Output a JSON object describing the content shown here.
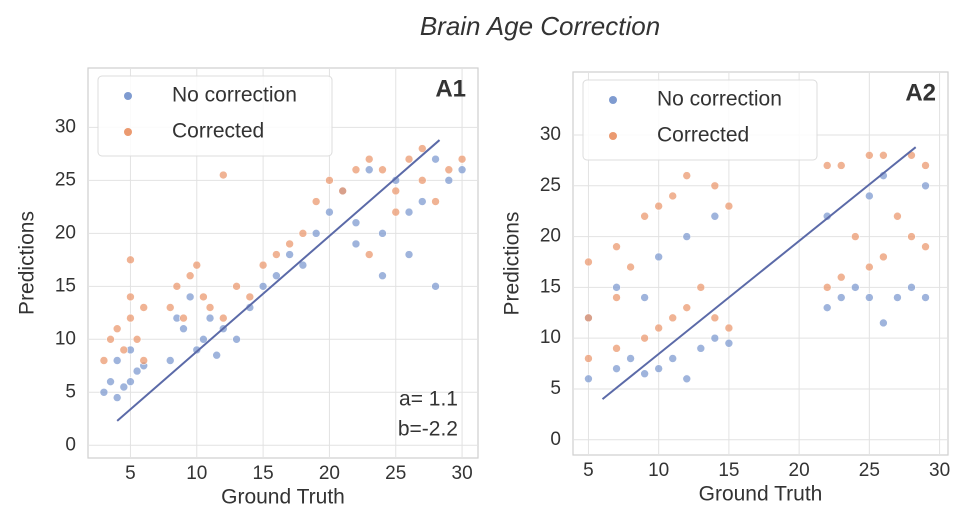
{
  "title": "Brain Age Correction",
  "chart_data": [
    {
      "type": "scatter",
      "panel_label": "A1",
      "xlabel": "Ground Truth",
      "ylabel": "Predictions",
      "xlim": [
        1.8,
        31.2
      ],
      "ylim": [
        -1.2,
        35.6
      ],
      "xticks": [
        5,
        10,
        15,
        20,
        25,
        30
      ],
      "yticks": [
        0,
        5,
        10,
        15,
        20,
        25,
        30
      ],
      "grid": true,
      "legend": "upper left",
      "series": [
        {
          "name": "No correction",
          "color": "#7f9bd0",
          "x": [
            3,
            3.5,
            4,
            4,
            4.5,
            5,
            5,
            5.5,
            6,
            8,
            8.5,
            9,
            9.5,
            10,
            10.5,
            11,
            11.5,
            12,
            13,
            14,
            15,
            16,
            17,
            18,
            19,
            20,
            21,
            22,
            23,
            24,
            25,
            26,
            27,
            28,
            29,
            30,
            24,
            22,
            26,
            28
          ],
          "values": [
            5,
            6,
            4.5,
            8,
            5.5,
            6,
            9,
            7,
            7.5,
            8,
            12,
            11,
            14,
            9,
            10,
            12,
            8.5,
            11,
            10,
            13,
            15,
            16,
            18,
            17,
            20,
            22,
            24,
            21,
            26,
            20,
            25,
            18,
            23,
            15,
            25,
            26,
            16,
            19,
            22,
            27
          ]
        },
        {
          "name": "Corrected",
          "color": "#eb9a70",
          "x": [
            3,
            3.5,
            4,
            4.5,
            5,
            5,
            5.5,
            6,
            6,
            8,
            8.5,
            9,
            9.5,
            10,
            10.5,
            11,
            12,
            12,
            13,
            14,
            15,
            16,
            17,
            18,
            19,
            20,
            21,
            22,
            23,
            24,
            25,
            26,
            27,
            28,
            29,
            30,
            23,
            25,
            27,
            5
          ],
          "values": [
            8,
            10,
            11,
            9,
            12,
            14,
            10,
            13,
            8,
            13,
            15,
            12,
            16,
            17,
            14,
            13,
            25.5,
            12,
            15,
            14,
            17,
            18,
            19,
            20,
            23,
            25,
            24,
            26,
            27,
            26,
            24,
            27,
            25,
            23,
            26,
            27,
            18,
            22,
            28,
            17.5
          ]
        }
      ],
      "fit_line": {
        "color": "#5b6aa8",
        "x": [
          4,
          28.3
        ],
        "y": [
          2.3,
          28.8
        ]
      },
      "annotations": [
        "a= 1.1",
        "b=-2.2"
      ]
    },
    {
      "type": "scatter",
      "panel_label": "A2",
      "xlabel": "Ground Truth",
      "ylabel": "Predictions",
      "xlim": [
        3.9,
        30.6
      ],
      "ylim": [
        -1.5,
        36.2
      ],
      "xticks": [
        5,
        10,
        15,
        20,
        25,
        30
      ],
      "yticks": [
        0,
        5,
        10,
        15,
        20,
        25,
        30
      ],
      "grid": true,
      "legend": "upper left",
      "series": [
        {
          "name": "No correction",
          "color": "#7f9bd0",
          "x": [
            5,
            5,
            7,
            7,
            8,
            9,
            9,
            10,
            10,
            11,
            12,
            12,
            13,
            14,
            14,
            15,
            22,
            22,
            23,
            24,
            25,
            25,
            26,
            26,
            27,
            28,
            29,
            29
          ],
          "values": [
            6,
            12,
            7,
            15,
            8,
            6.5,
            14,
            7,
            18,
            8,
            6,
            20,
            9,
            10,
            22,
            9.5,
            13,
            22,
            14,
            15,
            14,
            24,
            11.5,
            26,
            14,
            15,
            14,
            25
          ]
        },
        {
          "name": "Corrected",
          "color": "#eb9a70",
          "x": [
            5,
            5,
            5,
            7,
            7,
            7,
            8,
            9,
            9,
            10,
            10,
            11,
            11,
            12,
            12,
            13,
            14,
            14,
            15,
            15,
            22,
            22,
            23,
            23,
            24,
            25,
            25,
            26,
            26,
            27,
            28,
            28,
            29,
            29
          ],
          "values": [
            8,
            12,
            17.5,
            9,
            14,
            19,
            17,
            10,
            22,
            11,
            23,
            12,
            24,
            13,
            26,
            15,
            12,
            25,
            11,
            23,
            15,
            27,
            16,
            27,
            20,
            17,
            28,
            18,
            28,
            22,
            20,
            28,
            19,
            27
          ]
        }
      ],
      "fit_line": {
        "color": "#5b6aa8",
        "x": [
          6,
          28.3
        ],
        "y": [
          4,
          28.8
        ]
      }
    }
  ]
}
